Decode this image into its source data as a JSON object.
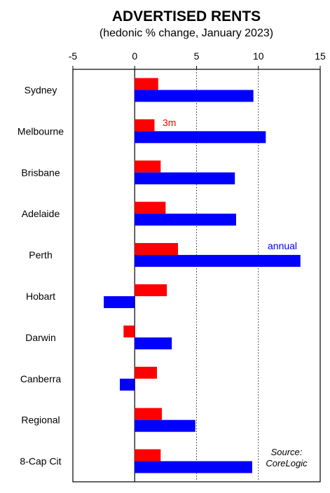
{
  "chart_data": {
    "type": "bar",
    "orientation": "horizontal",
    "title": "ADVERTISED RENTS",
    "subtitle": "(hedonic % change, January 2023)",
    "categories": [
      "Sydney",
      "Melbourne",
      "Brisbane",
      "Adelaide",
      "Perth",
      "Hobart",
      "Darwin",
      "Canberra",
      "Regional",
      "8-Cap Cit"
    ],
    "series": [
      {
        "name": "3m",
        "color": "#ff0000",
        "values": [
          1.9,
          1.6,
          2.1,
          2.5,
          3.5,
          2.6,
          -0.9,
          1.8,
          2.2,
          2.1
        ]
      },
      {
        "name": "annual",
        "color": "#0000ff",
        "values": [
          9.6,
          10.6,
          8.1,
          8.2,
          13.4,
          -2.5,
          3.0,
          -1.2,
          4.9,
          9.5
        ]
      }
    ],
    "xlim": [
      -5,
      15
    ],
    "xticks": [
      -5,
      0,
      5,
      10,
      15
    ],
    "xtick_labels": [
      "-5",
      "0",
      "5",
      "10",
      "15"
    ],
    "gridlines_at": [
      5,
      10
    ],
    "grid_style": "dotted vertical",
    "xaxis_position": "top",
    "annotations": {
      "series_3m": "3m",
      "series_annual": "annual",
      "source_line1": "Source:",
      "source_line2": "CoreLogic"
    }
  }
}
